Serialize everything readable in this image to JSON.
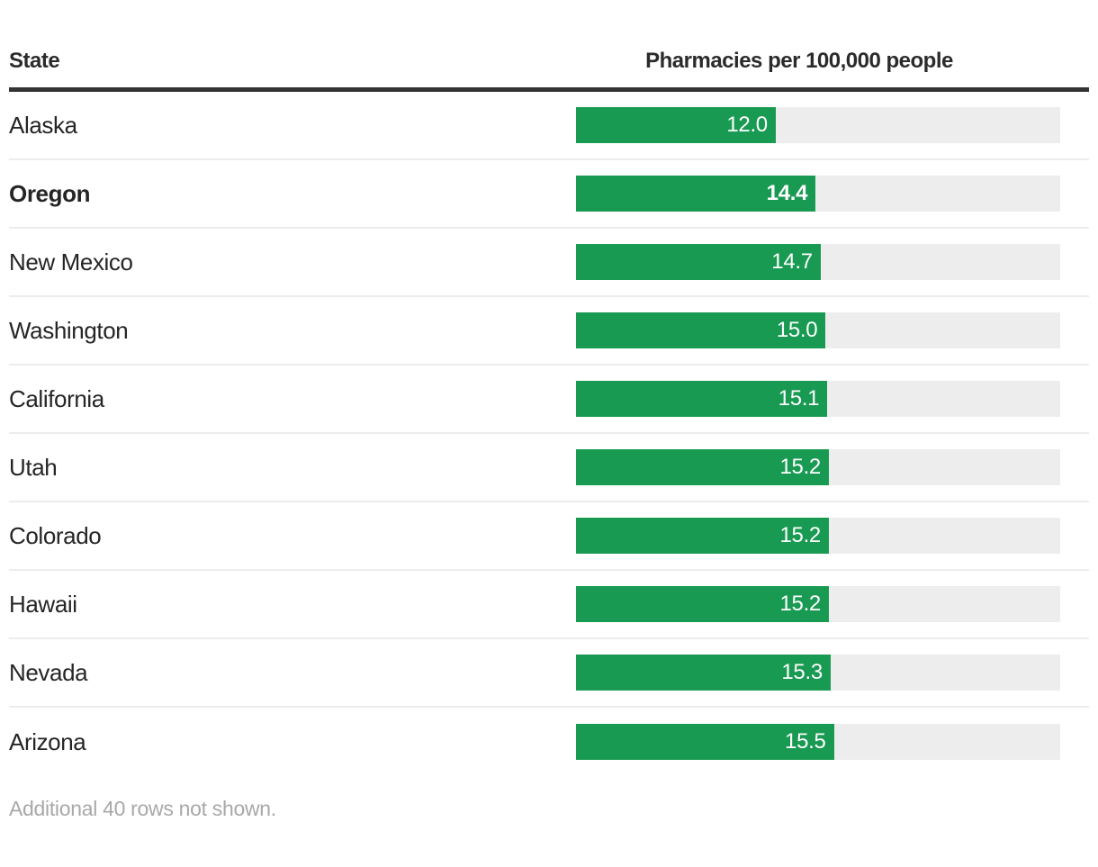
{
  "header": {
    "state_col": "State",
    "value_col": "Pharmacies per 100,000 people"
  },
  "footer": {
    "note": "Additional 40 rows not shown."
  },
  "colors": {
    "bar_green": "#199a52",
    "track_gray": "#ededed",
    "header_rule": "#333333",
    "row_divider": "#ececec",
    "text_dark": "#252525",
    "value_text": "#ffffff",
    "footer_gray": "#a8a8a8"
  },
  "chart_data": {
    "type": "bar",
    "orientation": "horizontal",
    "title": "Pharmacies per 100,000 people",
    "xlabel": "Pharmacies per 100,000 people",
    "ylabel": "State",
    "categories": [
      "Alaska",
      "Oregon",
      "New Mexico",
      "Washington",
      "California",
      "Utah",
      "Colorado",
      "Hawaii",
      "Nevada",
      "Arizona"
    ],
    "values": [
      12.0,
      14.4,
      14.7,
      15.0,
      15.1,
      15.2,
      15.2,
      15.2,
      15.3,
      15.5
    ],
    "value_labels": [
      "12.0",
      "14.4",
      "14.7",
      "15.0",
      "15.1",
      "15.2",
      "15.2",
      "15.2",
      "15.3",
      "15.5"
    ],
    "emphasized_category": "Oregon",
    "xlim": [
      0,
      29.1
    ],
    "grid": false,
    "legend": false,
    "sort_order": "ascending",
    "note": "Additional 40 rows not shown."
  }
}
